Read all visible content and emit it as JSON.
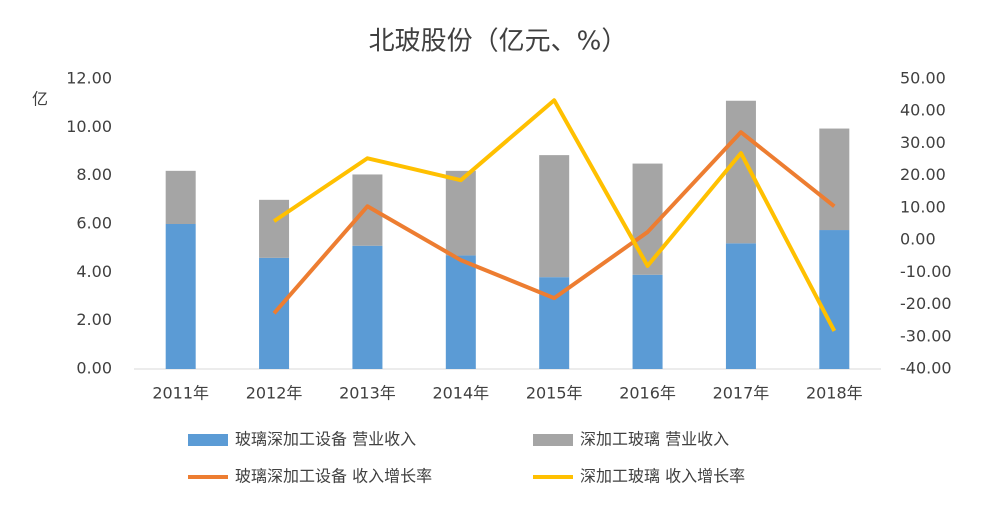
{
  "chart_data": {
    "type": "bar_line",
    "title": "北玻股份（亿元、%）",
    "y_label": "亿",
    "categories": [
      "2011年",
      "2012年",
      "2013年",
      "2014年",
      "2015年",
      "2016年",
      "2017年",
      "2018年"
    ],
    "series": [
      {
        "name": "玻璃深加工设备 营业收入",
        "color": "#5b9bd5",
        "kind": "bar",
        "values": [
          6.0,
          4.6,
          5.1,
          4.7,
          3.8,
          3.9,
          5.2,
          5.75
        ]
      },
      {
        "name": "深加工玻璃 营业收入",
        "color": "#a5a5a5",
        "kind": "bar",
        "values": [
          2.2,
          2.4,
          2.95,
          3.5,
          5.05,
          4.6,
          5.9,
          4.2
        ]
      },
      {
        "name": "玻璃深加工设备 收入增长率",
        "color": "#ed7d31",
        "kind": "line",
        "axis": "y2",
        "values": [
          null,
          -22.7,
          10.5,
          -6.2,
          -18,
          2.5,
          33.5,
          10.5
        ]
      },
      {
        "name": "深加工玻璃 收入增长率",
        "color": "#ffc000",
        "kind": "line",
        "axis": "y2",
        "values": [
          null,
          5.9,
          25.4,
          18.6,
          43.4,
          -8,
          27,
          -28.2
        ]
      }
    ],
    "ylim": [
      0,
      12
    ],
    "yticks": [
      {
        "value": 0,
        "label": "0.00"
      },
      {
        "value": 2,
        "label": "2.00"
      },
      {
        "value": 4,
        "label": "4.00"
      },
      {
        "value": 6,
        "label": "6.00"
      },
      {
        "value": 8,
        "label": "8.00"
      },
      {
        "value": 10,
        "label": "10.00"
      },
      {
        "value": 12,
        "label": "12.00"
      }
    ],
    "y2lim": [
      -40,
      50
    ],
    "y2ticks": [
      {
        "value": -40,
        "label": "-40.00"
      },
      {
        "value": -30,
        "label": "-30.00"
      },
      {
        "value": -20,
        "label": "-20.00"
      },
      {
        "value": -10,
        "label": "-10.00"
      },
      {
        "value": 0,
        "label": "0.00"
      },
      {
        "value": 10,
        "label": "10.00"
      },
      {
        "value": 20,
        "label": "20.00"
      },
      {
        "value": 30,
        "label": "30.00"
      },
      {
        "value": 40,
        "label": "40.00"
      },
      {
        "value": 50,
        "label": "50.00"
      }
    ]
  }
}
